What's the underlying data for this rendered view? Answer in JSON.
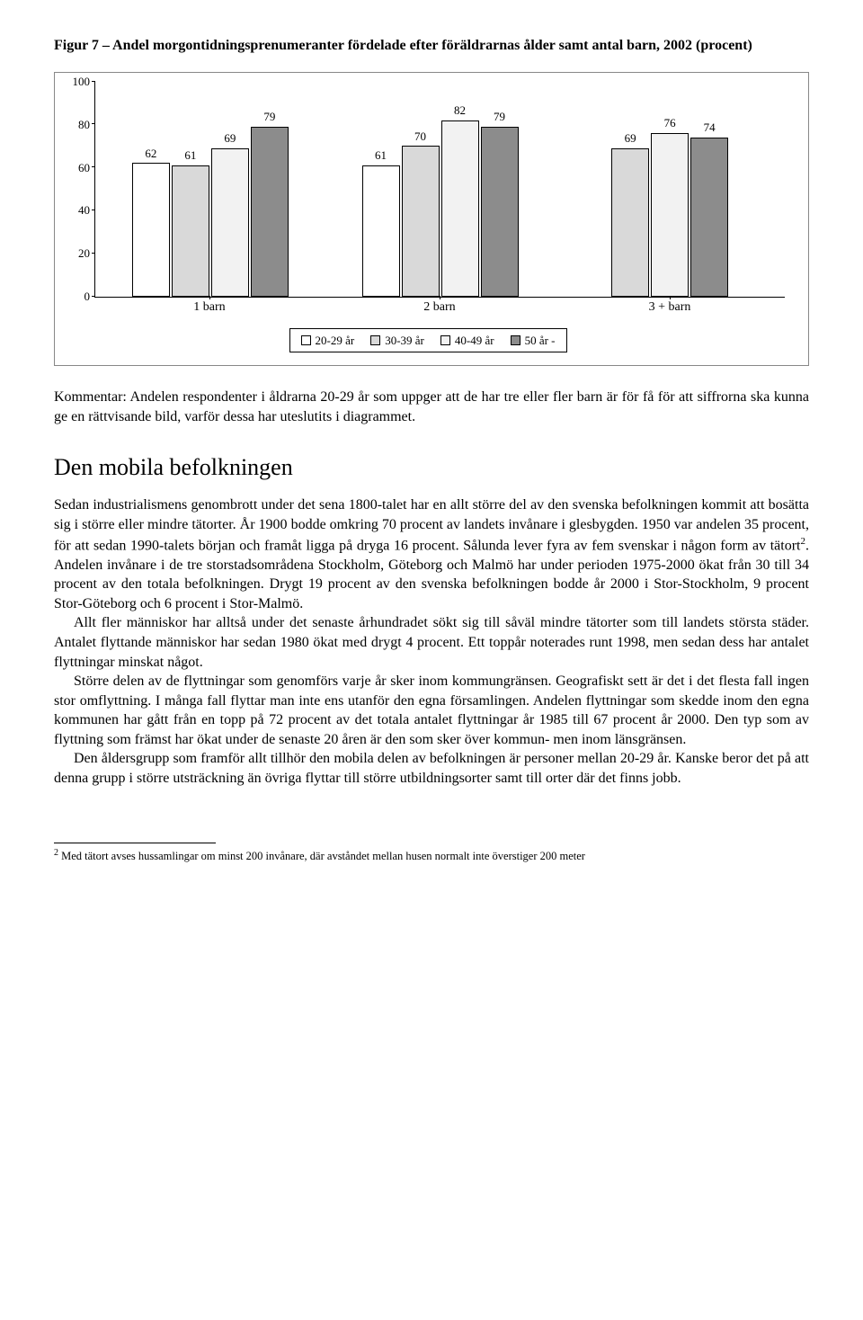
{
  "figure": {
    "title": "Figur 7 – Andel morgontidningsprenumeranter fördelade efter föräldrarnas ålder samt antal barn, 2002 (procent)",
    "chart": {
      "type": "bar",
      "ylim": [
        0,
        100
      ],
      "ytick_step": 20,
      "yticks": [
        0,
        20,
        40,
        60,
        80,
        100
      ],
      "categories": [
        "1 barn",
        "2 barn",
        "3 + barn"
      ],
      "series": [
        {
          "label": "20-29 år",
          "color": "#ffffff"
        },
        {
          "label": "30-39 år",
          "color": "#d9d9d9"
        },
        {
          "label": "40-49 år",
          "color": "#f2f2f2"
        },
        {
          "label": "50 år -",
          "color": "#8c8c8c"
        }
      ],
      "data": [
        [
          62,
          61,
          69,
          79
        ],
        [
          61,
          70,
          82,
          79
        ],
        [
          69,
          76,
          74
        ]
      ],
      "missing_note": "20-29 år saknas i grupp 3 + barn",
      "background_color": "#ffffff",
      "axis_color": "#000000",
      "label_fontsize": 13
    }
  },
  "commentary": "Kommentar: Andelen respondenter i åldrarna 20-29 år som uppger att de har tre eller fler barn är för få för att siffrorna ska kunna ge en rättvisande bild, varför dessa har uteslutits i diagrammet.",
  "section_heading": "Den mobila befolkningen",
  "paragraphs": {
    "p1a": "Sedan industrialismens genombrott under det sena 1800-talet har en allt större del av den svenska befolkningen kommit att bosätta sig i större eller mindre tätorter. År 1900 bodde omkring 70 procent av landets invånare i glesbygden. 1950 var andelen 35 procent, för att sedan 1990-talets början och framåt ligga på dryga 16 procent. Sålunda lever fyra av fem svenskar i någon form av tätort",
    "p1b": ". Andelen invånare i de tre storstadsområdena Stockholm, Göteborg och Malmö har under perioden 1975-2000 ökat från 30 till 34 procent av den totala befolkningen. Drygt 19 procent av den svenska befolkningen bodde år 2000 i Stor-Stockholm, 9 procent Stor-Göteborg och 6 procent i Stor-Malmö.",
    "p2": "Allt fler människor har alltså under det senaste århundradet sökt sig till såväl mindre tätorter som till landets största städer. Antalet flyttande människor har sedan 1980 ökat med drygt 4 procent. Ett toppår noterades runt 1998, men sedan dess har antalet flyttningar minskat något.",
    "p3": "Större delen av de flyttningar som genomförs varje år sker inom kommungränsen. Geografiskt sett är det i det flesta fall ingen stor omflyttning. I många fall flyttar man inte ens utanför den egna församlingen. Andelen flyttningar som skedde inom den egna kommunen har gått från en topp på 72 procent av det totala antalet flyttningar år 1985 till 67 procent år 2000. Den typ som av flyttning som främst har ökat under de senaste 20 åren är den som sker över kommun- men inom länsgränsen.",
    "p4": "Den åldersgrupp som framför allt tillhör den mobila delen av befolkningen är personer mellan 20-29 år. Kanske beror det på att denna grupp i större utsträckning än övriga flyttar till större utbildningsorter samt till orter där det finns jobb."
  },
  "footnote": {
    "marker": "2",
    "text": " Med tätort avses hussamlingar om minst 200 invånare, där avståndet mellan husen normalt inte överstiger 200 meter"
  }
}
